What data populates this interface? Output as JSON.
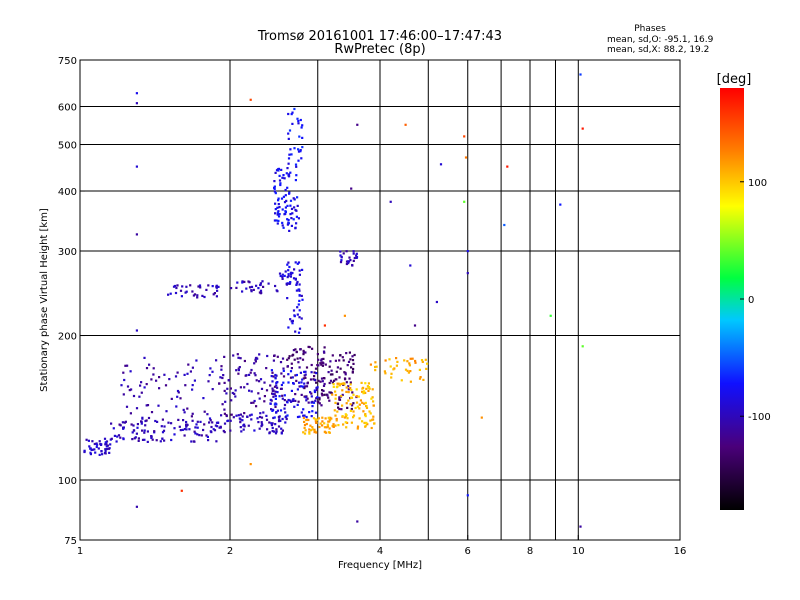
{
  "chart_data": {
    "type": "scatter",
    "title": "Tromsø 20161001 17:46:00–17:47:43",
    "subtitle": "RwPretec (8p)",
    "stats": {
      "header": "Phases",
      "line1": "mean, sd,O: -95.1, 16.9",
      "line2": "mean, sd,X:  88.2, 19.2"
    },
    "xlabel": "Frequency [MHz]",
    "ylabel": "Stationary phase Virtual Height [km]",
    "x_scale": "log",
    "y_scale": "log",
    "xlim": [
      1,
      16
    ],
    "ylim": [
      75,
      750
    ],
    "x_ticks": [
      1,
      2,
      4,
      6,
      8,
      10,
      16
    ],
    "x_tick_labels": [
      "1",
      "2",
      "4",
      "6",
      "8",
      "10",
      "16"
    ],
    "x_grid": [
      2,
      3,
      4,
      5,
      6,
      7,
      8,
      9,
      10
    ],
    "y_ticks": [
      75,
      100,
      200,
      300,
      400,
      500,
      600,
      750
    ],
    "y_tick_labels": [
      "75",
      "100",
      "200",
      "300",
      "400",
      "500",
      "600",
      "750"
    ],
    "y_grid": [
      100,
      200,
      300,
      400,
      500,
      600
    ],
    "grid": true,
    "colorbar": {
      "label": "[deg]",
      "range": [
        -180,
        180
      ],
      "ticks": [
        100,
        0,
        -100
      ],
      "tick_labels": [
        "100",
        "0",
        "-100"
      ]
    },
    "series": [
      {
        "clusters": [
          {
            "x": [
              1.02,
              1.15
            ],
            "y": [
              112,
              122
            ],
            "phase": -95,
            "n": 45
          },
          {
            "x": [
              1.15,
              1.9
            ],
            "y": [
              120,
              135
            ],
            "phase": -100,
            "n": 110
          },
          {
            "x": [
              1.9,
              2.6
            ],
            "y": [
              125,
              137
            ],
            "phase": -100,
            "n": 70
          },
          {
            "x": [
              1.2,
              1.9
            ],
            "y": [
              130,
              180
            ],
            "phase": -105,
            "n": 80
          },
          {
            "x": [
              1.9,
              2.6
            ],
            "y": [
              135,
              185
            ],
            "phase": -110,
            "n": 110
          },
          {
            "x": [
              2.6,
              3.2
            ],
            "y": [
              145,
              190
            ],
            "phase": -125,
            "n": 90
          },
          {
            "x": [
              2.4,
              3.0
            ],
            "y": [
              135,
              170
            ],
            "phase": -80,
            "n": 90
          },
          {
            "x": [
              3.0,
              3.6
            ],
            "y": [
              140,
              185
            ],
            "phase": -130,
            "n": 80
          },
          {
            "x": [
              2.8,
              3.3
            ],
            "y": [
              125,
              135
            ],
            "phase": 110,
            "n": 60
          },
          {
            "x": [
              3.2,
              3.9
            ],
            "y": [
              128,
              160
            ],
            "phase": 105,
            "n": 110
          },
          {
            "x": [
              3.8,
              5.0
            ],
            "y": [
              160,
              180
            ],
            "phase": 110,
            "n": 40
          },
          {
            "x": [
              1.5,
              1.9
            ],
            "y": [
              240,
              255
            ],
            "phase": -100,
            "n": 35
          },
          {
            "x": [
              2.0,
              2.5
            ],
            "y": [
              245,
              260
            ],
            "phase": -100,
            "n": 30
          },
          {
            "x": [
              2.5,
              2.8
            ],
            "y": [
              255,
              275
            ],
            "phase": -90,
            "n": 25
          },
          {
            "x": [
              2.6,
              2.8
            ],
            "y": [
              200,
              290
            ],
            "phase": -85,
            "n": 40
          },
          {
            "x": [
              2.45,
              2.75
            ],
            "y": [
              330,
              450
            ],
            "phase": -80,
            "n": 90
          },
          {
            "x": [
              2.6,
              2.8
            ],
            "y": [
              450,
              610
            ],
            "phase": -75,
            "n": 30
          },
          {
            "x": [
              3.3,
              3.6
            ],
            "y": [
              280,
              300
            ],
            "phase": -100,
            "n": 25
          }
        ],
        "scattered": [
          {
            "x": 1.3,
            "y": 640,
            "phase": -80
          },
          {
            "x": 1.3,
            "y": 610,
            "phase": -100
          },
          {
            "x": 1.3,
            "y": 450,
            "phase": -90
          },
          {
            "x": 1.3,
            "y": 325,
            "phase": -110
          },
          {
            "x": 1.3,
            "y": 205,
            "phase": -95
          },
          {
            "x": 1.3,
            "y": 88,
            "phase": -105
          },
          {
            "x": 1.6,
            "y": 95,
            "phase": 160
          },
          {
            "x": 2.2,
            "y": 620,
            "phase": 150
          },
          {
            "x": 2.2,
            "y": 108,
            "phase": 120
          },
          {
            "x": 3.6,
            "y": 550,
            "phase": -120
          },
          {
            "x": 3.6,
            "y": 82,
            "phase": -110
          },
          {
            "x": 3.5,
            "y": 405,
            "phase": -120
          },
          {
            "x": 4.5,
            "y": 550,
            "phase": 140
          },
          {
            "x": 5.3,
            "y": 455,
            "phase": -90
          },
          {
            "x": 5.9,
            "y": 520,
            "phase": 150
          },
          {
            "x": 5.95,
            "y": 470,
            "phase": 130
          },
          {
            "x": 6.0,
            "y": 300,
            "phase": -80
          },
          {
            "x": 6.0,
            "y": 270,
            "phase": -100
          },
          {
            "x": 6.0,
            "y": 93,
            "phase": -70
          },
          {
            "x": 5.9,
            "y": 380,
            "phase": 40
          },
          {
            "x": 6.4,
            "y": 135,
            "phase": 120
          },
          {
            "x": 7.2,
            "y": 450,
            "phase": 170
          },
          {
            "x": 7.1,
            "y": 340,
            "phase": -50
          },
          {
            "x": 8.8,
            "y": 220,
            "phase": 30
          },
          {
            "x": 9.2,
            "y": 375,
            "phase": -70
          },
          {
            "x": 10.1,
            "y": 700,
            "phase": -60
          },
          {
            "x": 10.2,
            "y": 540,
            "phase": 170
          },
          {
            "x": 10.1,
            "y": 80,
            "phase": -110
          },
          {
            "x": 10.2,
            "y": 190,
            "phase": 40
          },
          {
            "x": 4.2,
            "y": 380,
            "phase": -100
          },
          {
            "x": 4.6,
            "y": 280,
            "phase": -90
          },
          {
            "x": 5.2,
            "y": 235,
            "phase": -95
          },
          {
            "x": 4.7,
            "y": 210,
            "phase": -120
          },
          {
            "x": 3.1,
            "y": 210,
            "phase": 160
          },
          {
            "x": 3.4,
            "y": 220,
            "phase": 120
          }
        ]
      }
    ]
  }
}
